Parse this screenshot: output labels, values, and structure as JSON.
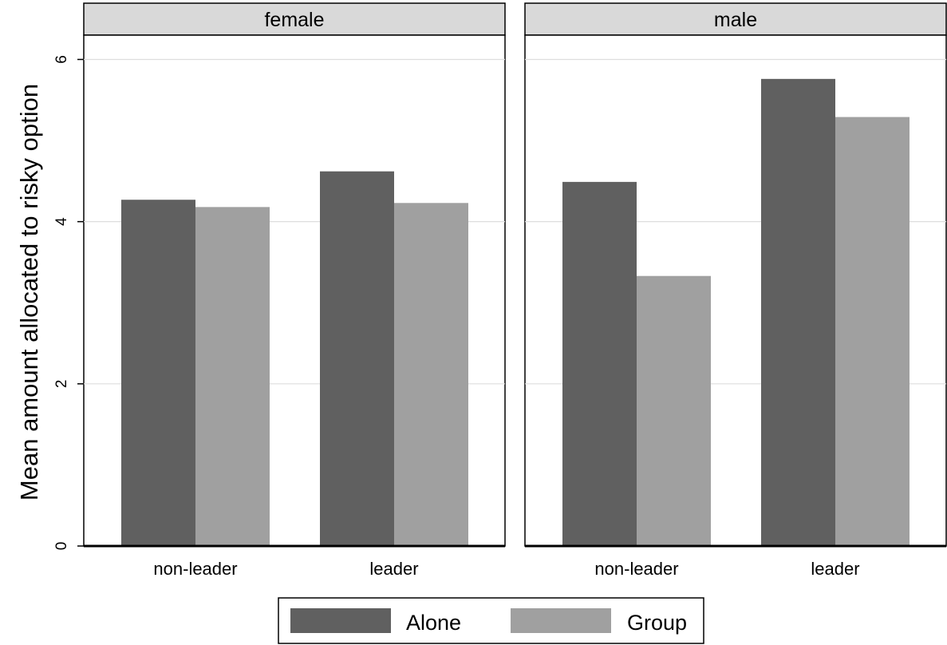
{
  "chart_data": {
    "type": "bar",
    "ylabel": "Mean amount allocated to risky option",
    "ylim": [
      0,
      6.3
    ],
    "yticks": [
      0,
      2,
      4,
      6
    ],
    "grid": true,
    "categories": [
      "non-leader",
      "leader"
    ],
    "panels": [
      {
        "title": "female",
        "series": [
          {
            "name": "Alone",
            "values": [
              4.27,
              4.62
            ]
          },
          {
            "name": "Group",
            "values": [
              4.18,
              4.23
            ]
          }
        ]
      },
      {
        "title": "male",
        "series": [
          {
            "name": "Alone",
            "values": [
              4.49,
              5.76
            ]
          },
          {
            "name": "Group",
            "values": [
              3.33,
              5.29
            ]
          }
        ]
      }
    ],
    "legend": {
      "position": "bottom",
      "entries": [
        "Alone",
        "Group"
      ]
    },
    "colors": {
      "Alone": "#606060",
      "Group": "#a0a0a0",
      "strip": "#d9d9d9",
      "grid": "#dddddd"
    }
  }
}
